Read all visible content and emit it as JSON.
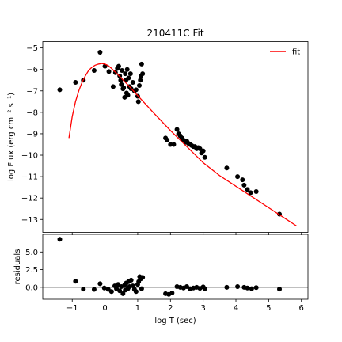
{
  "chart_data": [
    {
      "panel": "main",
      "type": "scatter",
      "title": "210411C Fit",
      "xlabel": "",
      "ylabel": "log Flux (erg cm⁻² s⁻¹)",
      "xlim": [
        -1.9,
        6.2
      ],
      "ylim": [
        -13.6,
        -4.7
      ],
      "xticks": [
        -1,
        0,
        1,
        2,
        3,
        4,
        5,
        6
      ],
      "yticks": [
        -13,
        -12,
        -11,
        -10,
        -9,
        -8,
        -7,
        -6,
        -5
      ],
      "legend": {
        "position": "top-right",
        "entries": [
          "fit"
        ]
      },
      "grid": false,
      "series": [
        {
          "name": "",
          "kind": "points",
          "color": "#000000",
          "x": [
            -1.38,
            -0.9,
            -0.66,
            -0.33,
            -0.15,
            0.0,
            0.12,
            0.25,
            0.32,
            0.38,
            0.42,
            0.45,
            0.48,
            0.5,
            0.52,
            0.55,
            0.57,
            0.6,
            0.62,
            0.64,
            0.66,
            0.68,
            0.7,
            0.72,
            0.75,
            0.78,
            0.8,
            0.85,
            0.9,
            0.95,
            1.0,
            1.02,
            1.05,
            1.08,
            1.1,
            1.12,
            1.15,
            1.85,
            1.9,
            2.0,
            2.1,
            2.2,
            2.25,
            2.3,
            2.35,
            2.4,
            2.45,
            2.5,
            2.55,
            2.6,
            2.65,
            2.7,
            2.75,
            2.8,
            2.85,
            2.9,
            2.95,
            3.0,
            3.05,
            3.72,
            4.05,
            4.2,
            4.25,
            4.35,
            4.45,
            4.62,
            5.33
          ],
          "y": [
            -6.95,
            -6.6,
            -6.5,
            -6.05,
            -5.2,
            -5.85,
            -6.1,
            -6.8,
            -6.15,
            -5.95,
            -5.85,
            -6.3,
            -6.5,
            -6.7,
            -6.05,
            -6.9,
            -6.85,
            -7.3,
            -6.2,
            -6.5,
            -7.1,
            -6.0,
            -7.2,
            -6.4,
            -6.8,
            -6.2,
            -6.9,
            -6.6,
            -7.0,
            -6.95,
            -7.25,
            -7.5,
            -6.75,
            -6.5,
            -6.3,
            -5.75,
            -6.2,
            -9.2,
            -9.3,
            -9.5,
            -9.5,
            -8.8,
            -9.0,
            -9.1,
            -9.2,
            -9.3,
            -9.4,
            -9.35,
            -9.45,
            -9.5,
            -9.55,
            -9.6,
            -9.6,
            -9.7,
            -9.65,
            -9.7,
            -9.9,
            -9.8,
            -10.1,
            -10.6,
            -11.0,
            -11.15,
            -11.4,
            -11.6,
            -11.75,
            -11.7,
            -12.75
          ]
        },
        {
          "name": "fit",
          "kind": "line",
          "color": "#ff0000",
          "x": [
            -1.1,
            -1.0,
            -0.9,
            -0.8,
            -0.7,
            -0.6,
            -0.5,
            -0.4,
            -0.3,
            -0.2,
            -0.1,
            0.0,
            0.1,
            0.2,
            0.4,
            0.7,
            1.0,
            1.5,
            2.0,
            2.5,
            3.0,
            3.5,
            4.0,
            4.5,
            5.0,
            5.5,
            5.85
          ],
          "y": [
            -9.2,
            -8.2,
            -7.5,
            -7.0,
            -6.6,
            -6.3,
            -6.05,
            -5.9,
            -5.8,
            -5.75,
            -5.72,
            -5.75,
            -5.82,
            -5.95,
            -6.25,
            -6.72,
            -7.22,
            -8.05,
            -8.85,
            -9.6,
            -10.35,
            -10.95,
            -11.45,
            -11.95,
            -12.45,
            -12.95,
            -13.3
          ]
        }
      ]
    },
    {
      "panel": "residuals",
      "type": "scatter",
      "title": "",
      "xlabel": "log T (sec)",
      "ylabel": "residuals",
      "xlim": [
        -1.9,
        6.2
      ],
      "ylim": [
        -1.7,
        7.5
      ],
      "xticks": [
        -1,
        0,
        1,
        2,
        3,
        4,
        5,
        6
      ],
      "xtick_labels": [
        "−1",
        "0",
        "1",
        "2",
        "3",
        "4",
        "5",
        "6"
      ],
      "yticks": [
        0.0,
        2.5,
        5.0
      ],
      "ytick_labels": [
        "0.0",
        "2.5",
        "5.0"
      ],
      "hline": 0,
      "series": [
        {
          "name": "",
          "kind": "points",
          "color": "#000000",
          "x": [
            -1.38,
            -0.9,
            -0.66,
            -0.33,
            -0.15,
            -0.02,
            0.1,
            0.2,
            0.3,
            0.35,
            0.4,
            0.45,
            0.5,
            0.55,
            0.6,
            0.62,
            0.65,
            0.7,
            0.72,
            0.75,
            0.8,
            0.85,
            0.9,
            0.95,
            1.0,
            1.03,
            1.06,
            1.1,
            1.12,
            1.15,
            1.85,
            1.95,
            2.05,
            2.2,
            2.3,
            2.4,
            2.5,
            2.6,
            2.7,
            2.8,
            2.9,
            3.0,
            3.05,
            3.72,
            4.05,
            4.25,
            4.35,
            4.48,
            4.62,
            5.33
          ],
          "y": [
            6.8,
            0.85,
            -0.25,
            -0.3,
            0.5,
            -0.1,
            -0.3,
            -0.6,
            0.2,
            -0.2,
            0.4,
            -0.5,
            0.1,
            -0.9,
            0.3,
            -0.4,
            0.6,
            -0.2,
            0.8,
            0.1,
            1.0,
            0.2,
            -0.3,
            -0.6,
            0.4,
            0.8,
            1.5,
            1.2,
            -0.2,
            1.4,
            -0.9,
            -1.0,
            -0.8,
            0.1,
            0.0,
            -0.1,
            0.1,
            -0.2,
            -0.1,
            0.0,
            -0.15,
            0.05,
            -0.2,
            0.0,
            0.1,
            0.0,
            -0.1,
            -0.2,
            -0.05,
            -0.25
          ]
        }
      ]
    }
  ]
}
